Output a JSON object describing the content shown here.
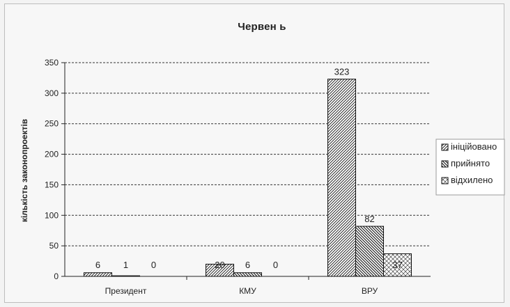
{
  "chart_data": {
    "type": "bar",
    "title": "Червен ь",
    "xlabel": "",
    "ylabel": "кількість законопроектів",
    "categories": [
      "Президент",
      "КМУ",
      "ВРУ"
    ],
    "series": [
      {
        "name": "ініційовано",
        "values": [
          6,
          20,
          323
        ],
        "pattern": "hatch-forward"
      },
      {
        "name": "прийнято",
        "values": [
          1,
          6,
          82
        ],
        "pattern": "hatch-backward"
      },
      {
        "name": "відхилено",
        "values": [
          0,
          0,
          37
        ],
        "pattern": "crosshatch"
      }
    ],
    "ylim": [
      0,
      350
    ],
    "yticks": [
      0,
      50,
      100,
      150,
      200,
      250,
      300,
      350
    ],
    "grid": true,
    "legend_position": "right"
  }
}
